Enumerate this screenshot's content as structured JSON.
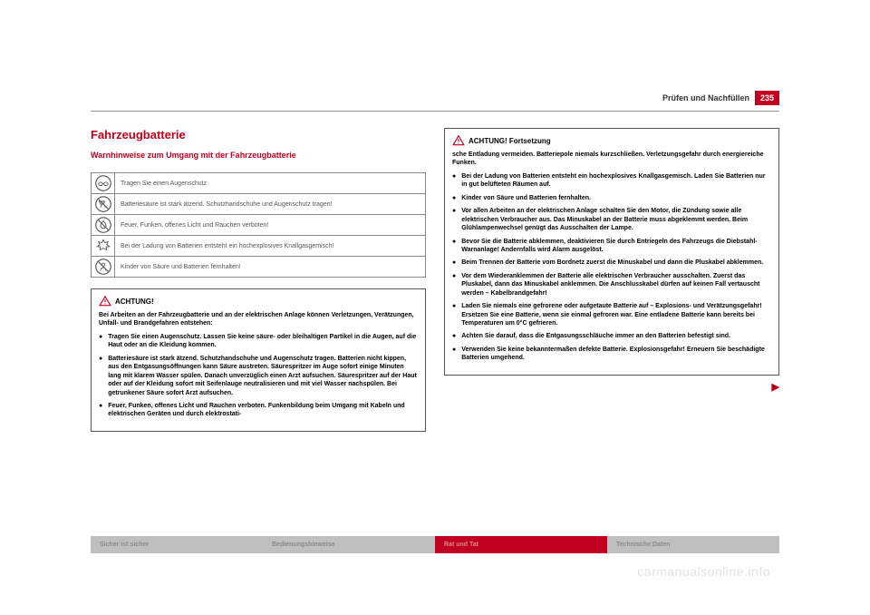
{
  "colors": {
    "accent": "#c1001f",
    "gray_tab": "#bfbfbf",
    "gray_tab_text": "#8a8a8a",
    "red_tab_text": "#dd8a8a",
    "rule": "#999999",
    "text": "#333333",
    "watermark": "#e2e2e2"
  },
  "header": {
    "title": "Prüfen und Nachfüllen",
    "page_number": "235"
  },
  "section": {
    "title": "Fahrzeugbatterie",
    "subtitle": "Warnhinweise zum Umgang mit der Fahrzeugbatterie"
  },
  "warning_table": {
    "rows": [
      {
        "icon": "goggles-icon",
        "text": "Tragen Sie einen Augenschutz"
      },
      {
        "icon": "corrosive-icon",
        "text": "Batteriesäure ist stark ätzend. Schutzhandschuhe und Augenschutz tragen!"
      },
      {
        "icon": "no-fire-icon",
        "text": "Feuer, Funken, offenes Licht und Rauchen verboten!"
      },
      {
        "icon": "explosion-icon",
        "text": "Bei der Ladung von Batterien entsteht ein hochexplosives Knallgasgemisch!"
      },
      {
        "icon": "keep-away-children-icon",
        "text": "Kinder von Säure und Batterien fernhalten!"
      }
    ]
  },
  "achtung_box": {
    "header": "ACHTUNG!",
    "intro": "Bei Arbeiten an der Fahrzeugbatterie und an der elektrischen Anlage können Verletzungen, Verätzungen, Unfall- und Brandgefahren entstehen:",
    "bullets": [
      "Tragen Sie einen Augenschutz. Lassen Sie keine säure- oder bleihaltigen Partikel in die Augen, auf die Haut oder an die Kleidung kommen.",
      "Batteriesäure ist stark ätzend. Schutzhandschuhe und Augenschutz tragen. Batterien nicht kippen, aus den Entgasungsöffnungen kann Säure austreten. Säurespritzer im Auge sofort einige Minuten lang mit klarem Wasser spülen. Danach unverzüglich einen Arzt aufsuchen. Säurespritzer auf der Haut oder auf der Kleidung sofort mit Seifenlauge neutralisieren und mit viel Wasser nachspülen. Bei getrunkener Säure sofort Arzt aufsuchen.",
      "Feuer, Funken, offenes Licht und Rauchen verboten. Funkenbildung beim Umgang mit Kabeln und elektrischen Geräten und durch elektrostati-"
    ]
  },
  "achtung_cont_box": {
    "header": "ACHTUNG! Fortsetzung",
    "intro": "sche Entladung vermeiden. Batteriepole niemals kurzschließen. Verletzungsgefahr durch energiereiche Funken.",
    "bullets": [
      "Bei der Ladung von Batterien entsteht ein hochexplosives Knallgasgemisch. Laden Sie Batterien nur in gut belüfteten Räumen auf.",
      "Kinder von Säure und Batterien fernhalten.",
      "Vor allen Arbeiten an der elektrischen Anlage schalten Sie den Motor, die Zündung sowie alle elektrischen Verbraucher aus. Das Minuskabel an der Batterie muss abgeklemmt werden. Beim Glühlampenwechsel genügt das Ausschalten der Lampe.",
      "Bevor Sie die Batterie abklemmen, deaktivieren Sie durch Entriegeln des Fahrzeugs die Diebstahl-Warnanlage! Andernfalls wird Alarm ausgelöst.",
      "Beim Trennen der Batterie vom Bordnetz zuerst die Minuskabel und dann die Pluskabel abklemmen.",
      "Vor dem Wiederanklemmen der Batterie alle elektrischen Verbraucher ausschalten. Zuerst das Pluskabel, dann das Minuskabel anklemmen. Die Anschlusskabel dürfen auf keinen Fall vertauscht werden – Kabelbrandgefahr!",
      "Laden Sie niemals eine gefrorene oder aufgetaute Batterie auf – Explosions- und Verätzungsgefahr! Ersetzen Sie eine Batterie, wenn sie einmal gefroren war. Eine entladene Batterie kann bereits bei Temperaturen um 0°C gefrieren.",
      "Achten Sie darauf, dass die Entgasungsschläuche immer an den Batterien befestigt sind.",
      "Verwenden Sie keine bekanntermaßen defekte Batterie. Explosionsgefahr! Erneuern Sie beschädigte Batterien umgehend."
    ]
  },
  "footer_tabs": [
    {
      "label": "Sicher ist sicher",
      "style": "gray"
    },
    {
      "label": "Bedienungshinweise",
      "style": "gray"
    },
    {
      "label": "Rat und Tat",
      "style": "red"
    },
    {
      "label": "Technische Daten",
      "style": "gray"
    }
  ],
  "watermark": "carmanualsonline.info"
}
